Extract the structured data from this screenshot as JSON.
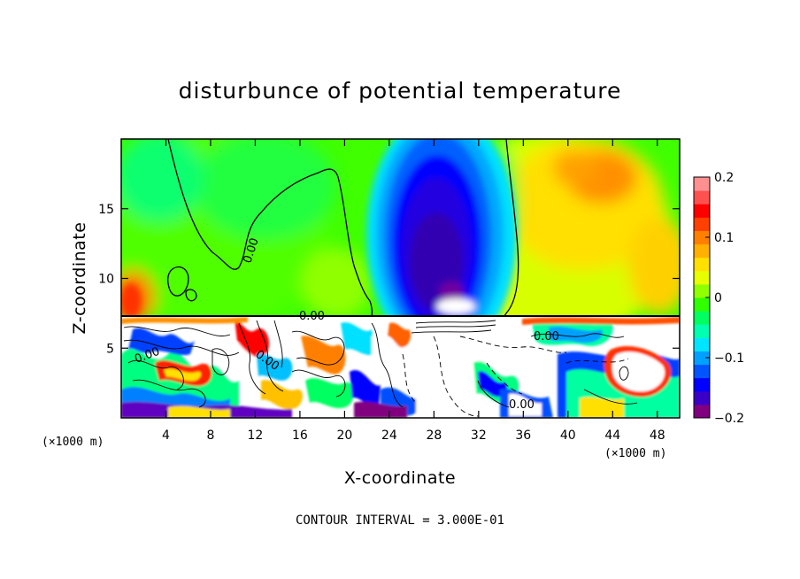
{
  "chart_data": {
    "type": "heatmap",
    "title": "disturbunce of potential temperature",
    "xlabel": "X-coordinate",
    "ylabel": "Z-coordinate",
    "x_unit_left": "(×1000 m)",
    "x_unit_right": "(×1000 m)",
    "footer": "CONTOUR INTERVAL = 3.000E-01",
    "xlim": [
      0,
      50
    ],
    "ylim": [
      0,
      20
    ],
    "x_ticks": [
      4,
      8,
      12,
      16,
      20,
      24,
      28,
      32,
      36,
      40,
      44,
      48
    ],
    "x_tick_labels": [
      "4",
      "8",
      "12",
      "16",
      "20",
      "24",
      "28",
      "32",
      "36",
      "40",
      "44",
      "48"
    ],
    "y_ticks": [
      5,
      10,
      15
    ],
    "y_tick_labels": [
      "5",
      "10",
      "15"
    ],
    "colorbar": {
      "range": [
        -0.2,
        0.2
      ],
      "ticks": [
        -0.2,
        -0.1,
        0,
        0.1,
        0.2
      ],
      "tick_labels": [
        "−0.2",
        "−0.1",
        "0",
        "0.1",
        "0.2"
      ],
      "colors": [
        "#800080",
        "#3b00c8",
        "#0000ff",
        "#0055ff",
        "#00a0ff",
        "#00e5ff",
        "#00ffb0",
        "#00ff60",
        "#30ff00",
        "#90ff00",
        "#e8ff00",
        "#ffe000",
        "#ffb000",
        "#ff8000",
        "#ff4000",
        "#ff0000",
        "#ff5050",
        "#ff9090"
      ]
    },
    "contour_labels": [
      "0.00",
      "0.00",
      "0.00",
      "0.00",
      "0.00",
      "0.00"
    ],
    "inversion_height": 7.3,
    "regions": {
      "upper_background": 0.015,
      "cold_core": {
        "x_center": 29.5,
        "z_center": 13.5,
        "value": -0.19
      },
      "warm_right": {
        "x_center": 42,
        "z_center": 16,
        "value": 0.1
      },
      "warm_left_low": {
        "x_center": 0.8,
        "z_center": 9,
        "value": 0.12
      }
    }
  }
}
